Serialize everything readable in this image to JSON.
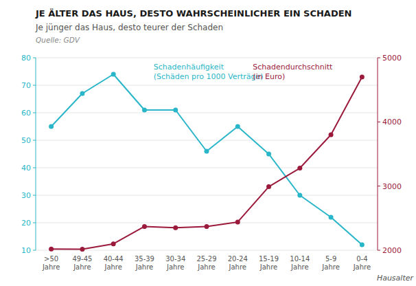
{
  "chart_data": {
    "type": "line",
    "title": "JE ÄLTER DAS HAUS, DESTO WAHRSCHEINLICHER EIN SCHADEN",
    "subtitle": "Je jünger das Haus, desto teurer der Schaden",
    "source": "Quelle: GDV",
    "xlabel": "Hausalter",
    "categories": [
      ">50\nJahre",
      "49-45\nJahre",
      "40-44\nJahre",
      "35-39\nJahre",
      "30-34\nJahre",
      "25-29\nJahre",
      "20-24\nJahre",
      "15-19\nJahre",
      "10-14\nJahre",
      "5-9\nJahre",
      "0-4\nJahre"
    ],
    "series": [
      {
        "name": "Schadenhäufigkeit\n(Schäden pro 1000 Verträge)",
        "color": "#29b6c8",
        "marker": "circle",
        "values": [
          55,
          67,
          74,
          61,
          61,
          46,
          55,
          45,
          30,
          22,
          12
        ]
      },
      {
        "name": "Schadendurchschnitt\n(in Euro)",
        "color": "#9b1a3b",
        "marker": "circle",
        "axis": "y2",
        "values": [
          2020,
          2015,
          2100,
          2370,
          2350,
          2370,
          2440,
          2990,
          3280,
          3800,
          4700
        ]
      }
    ],
    "ylim": [
      10,
      80
    ],
    "yticks": [
      10,
      20,
      30,
      40,
      50,
      60,
      70,
      80
    ],
    "y2lim": [
      2000,
      5000
    ],
    "y2ticks": [
      2000,
      3000,
      4000,
      5000
    ],
    "grid": true
  }
}
